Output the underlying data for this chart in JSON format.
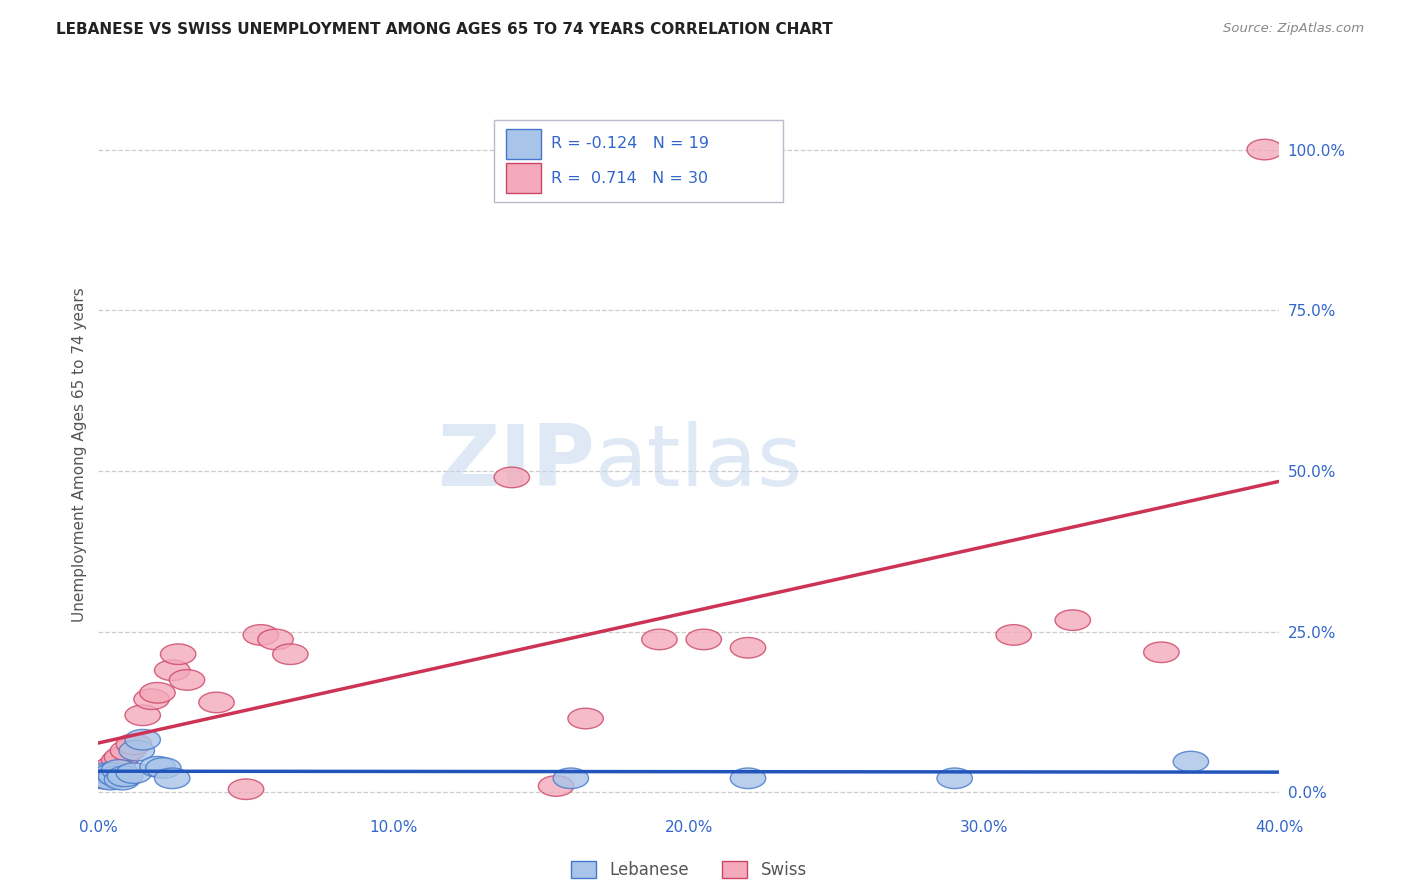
{
  "title": "LEBANESE VS SWISS UNEMPLOYMENT AMONG AGES 65 TO 74 YEARS CORRELATION CHART",
  "source": "Source: ZipAtlas.com",
  "ylabel": "Unemployment Among Ages 65 to 74 years",
  "xlim": [
    0.0,
    0.4
  ],
  "ylim": [
    -0.03,
    1.08
  ],
  "xticks": [
    0.0,
    0.1,
    0.2,
    0.3,
    0.4
  ],
  "yticks": [
    0.0,
    0.25,
    0.5,
    0.75,
    1.0
  ],
  "xtick_labels": [
    "0.0%",
    "10.0%",
    "20.0%",
    "30.0%",
    "40.0%"
  ],
  "ytick_labels": [
    "0.0%",
    "25.0%",
    "50.0%",
    "75.0%",
    "100.0%"
  ],
  "legend_R_blue": "-0.124",
  "legend_N_blue": "19",
  "legend_R_pink": "0.714",
  "legend_N_pink": "30",
  "legend_label_blue": "Lebanese",
  "legend_label_pink": "Swiss",
  "watermark_zip": "ZIP",
  "watermark_atlas": "atlas",
  "blue_scatter_x": [
    0.001,
    0.002,
    0.003,
    0.004,
    0.005,
    0.006,
    0.007,
    0.008,
    0.009,
    0.012,
    0.013,
    0.015,
    0.02,
    0.022,
    0.025,
    0.16,
    0.22,
    0.29,
    0.37
  ],
  "blue_scatter_y": [
    0.025,
    0.022,
    0.03,
    0.02,
    0.03,
    0.025,
    0.035,
    0.02,
    0.025,
    0.03,
    0.065,
    0.082,
    0.04,
    0.038,
    0.022,
    0.022,
    0.022,
    0.022,
    0.048
  ],
  "pink_scatter_x": [
    0.001,
    0.002,
    0.003,
    0.004,
    0.005,
    0.007,
    0.008,
    0.01,
    0.012,
    0.015,
    0.018,
    0.02,
    0.025,
    0.027,
    0.03,
    0.04,
    0.05,
    0.055,
    0.06,
    0.065,
    0.14,
    0.155,
    0.165,
    0.19,
    0.205,
    0.22,
    0.31,
    0.33,
    0.36,
    0.395
  ],
  "pink_scatter_y": [
    0.022,
    0.03,
    0.025,
    0.035,
    0.04,
    0.05,
    0.055,
    0.065,
    0.075,
    0.12,
    0.145,
    0.155,
    0.19,
    0.215,
    0.175,
    0.14,
    0.005,
    0.245,
    0.238,
    0.215,
    0.49,
    0.01,
    0.115,
    0.238,
    0.238,
    0.225,
    0.245,
    0.268,
    0.218,
    1.0
  ],
  "blue_color": "#a8c4e8",
  "pink_color": "#f4aabb",
  "blue_edge_color": "#4477cc",
  "pink_edge_color": "#cc4466",
  "blue_line_color": "#2255bb",
  "pink_line_color": "#cc3355",
  "grid_color": "#cccccc",
  "background_color": "#ffffff",
  "title_color": "#222222",
  "axis_label_color": "#555555",
  "tick_color": "#3366cc",
  "source_color": "#888888"
}
